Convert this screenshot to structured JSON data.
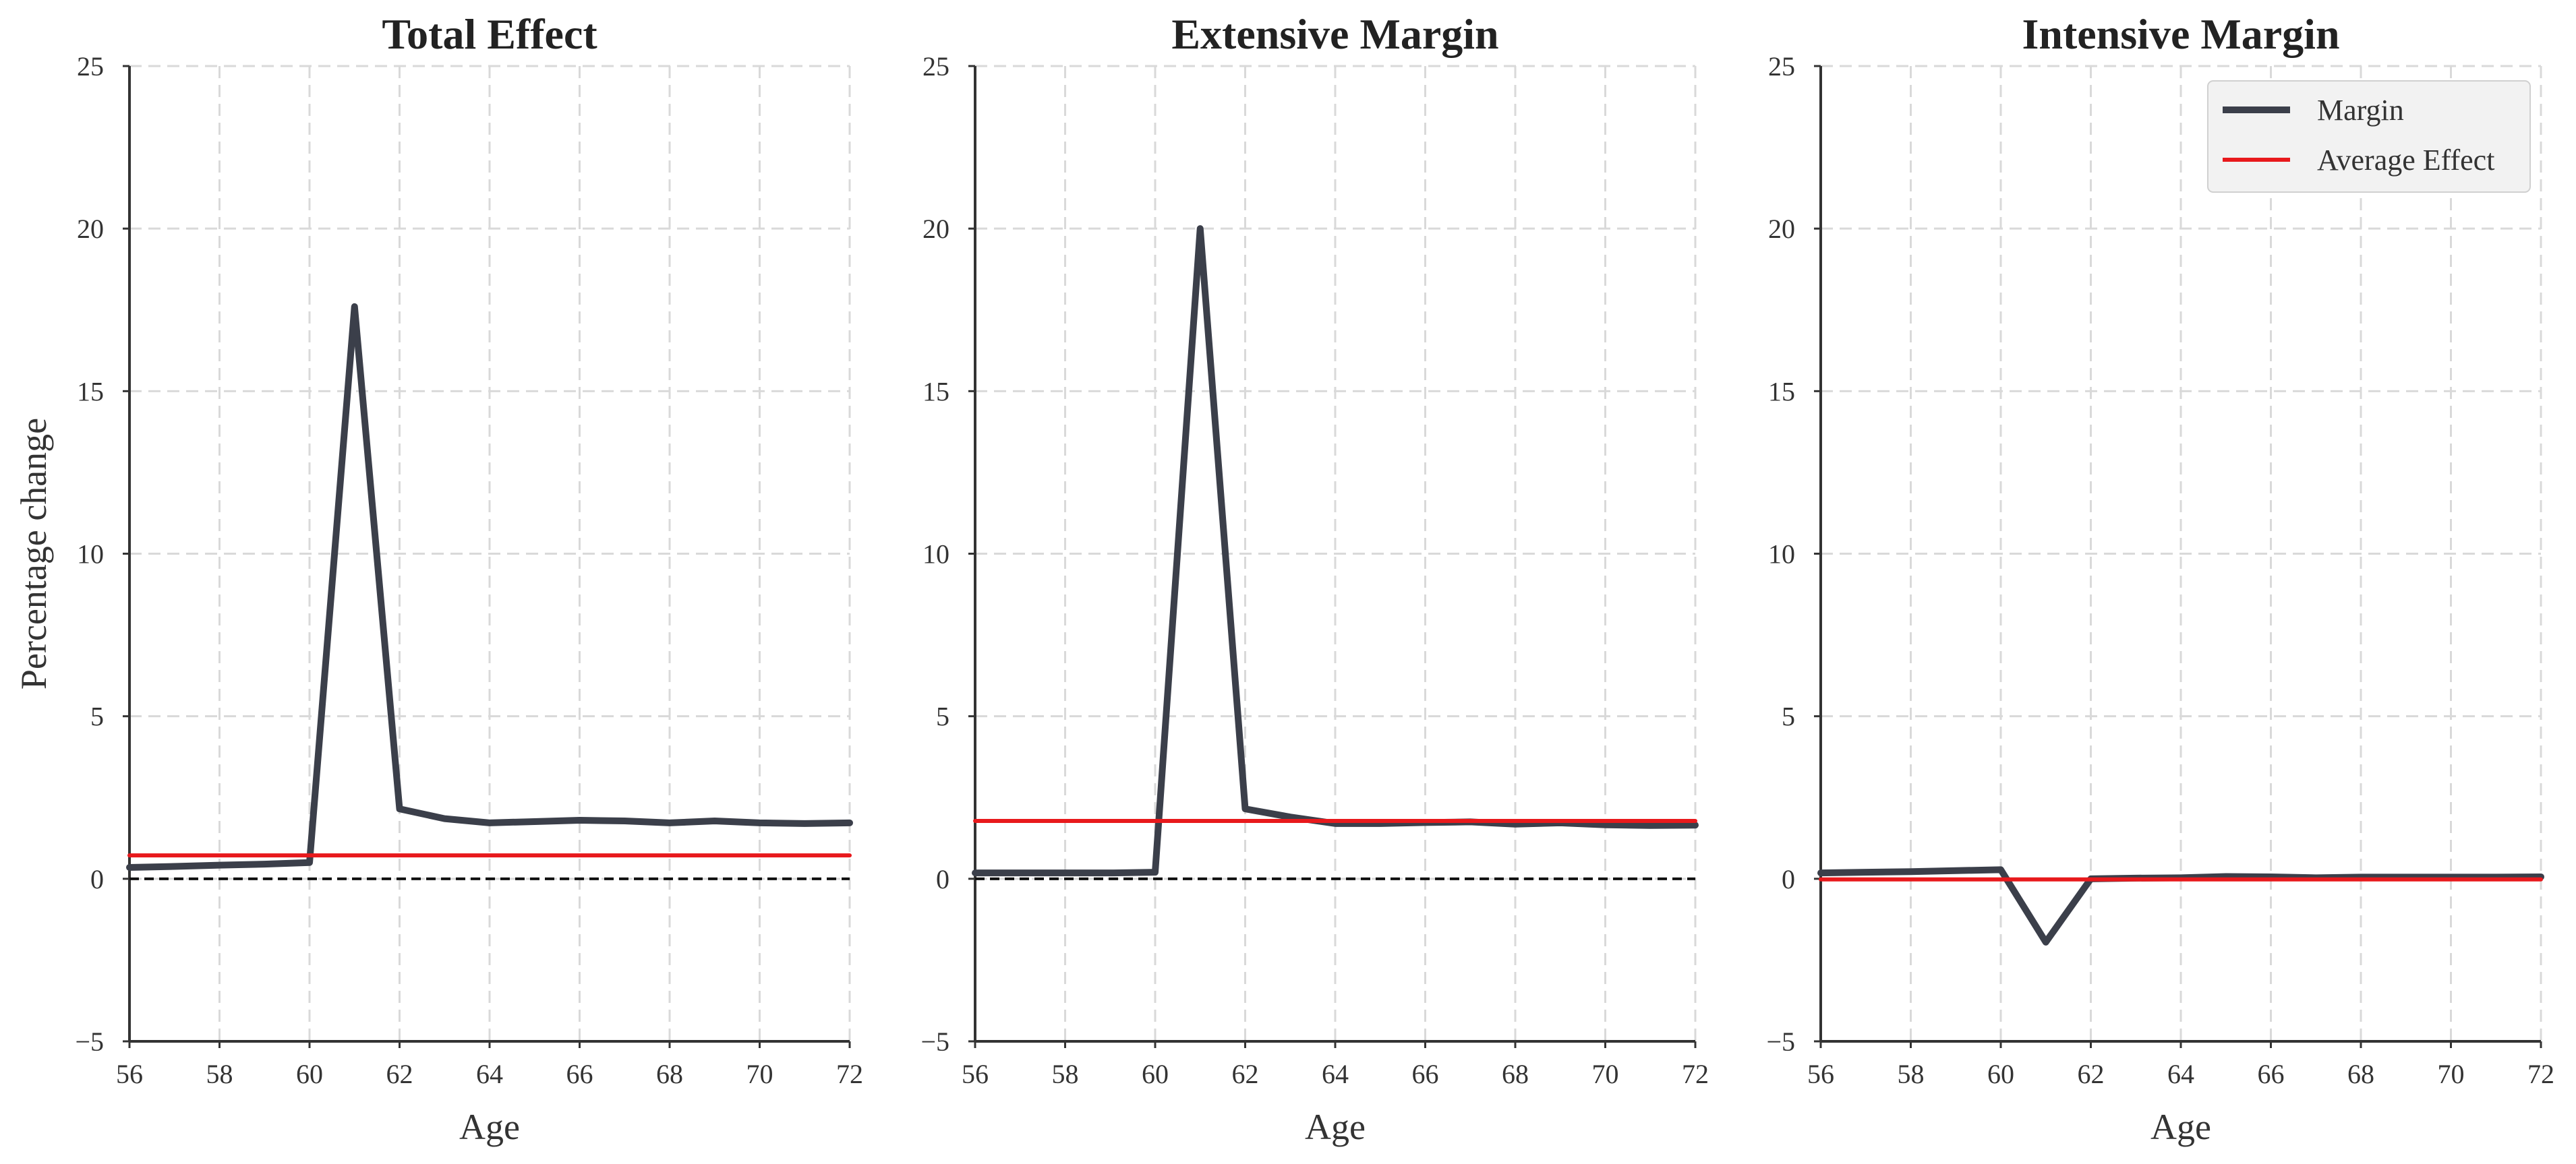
{
  "colors": {
    "margin_line": "#3b3f4a",
    "average_line": "#e8191c",
    "zero_line": "#111111",
    "grid": "#d9d9d9",
    "spine": "#333333",
    "legend_bg": "#f2f2f2"
  },
  "legend": {
    "placement": "upper-right of third panel",
    "items": [
      {
        "label": "Margin",
        "color": "#3b3f4a"
      },
      {
        "label": "Average Effect",
        "color": "#e8191c"
      }
    ]
  },
  "chart_data": [
    {
      "type": "line",
      "title": "Total Effect",
      "xlabel": "Age",
      "ylabel": "Percentage change",
      "xlim": [
        56,
        72
      ],
      "ylim": [
        -5,
        25
      ],
      "xticks": [
        "56",
        "58",
        "60",
        "62",
        "64",
        "66",
        "68",
        "70",
        "72"
      ],
      "yticks": [
        "−5",
        "0",
        "5",
        "10",
        "15",
        "20",
        "25"
      ],
      "grid": true,
      "zero_reference": 0,
      "series": [
        {
          "name": "Margin",
          "x": [
            56,
            57,
            58,
            59,
            60,
            61,
            62,
            63,
            64,
            65,
            66,
            67,
            68,
            69,
            70,
            71,
            72
          ],
          "y": [
            0.35,
            0.38,
            0.42,
            0.45,
            0.5,
            17.6,
            2.15,
            1.85,
            1.72,
            1.76,
            1.8,
            1.78,
            1.72,
            1.78,
            1.72,
            1.7,
            1.72
          ]
        },
        {
          "name": "Average Effect",
          "x": [
            56,
            72
          ],
          "y": [
            0.72,
            0.72
          ]
        }
      ]
    },
    {
      "type": "line",
      "title": "Extensive Margin",
      "xlabel": "Age",
      "ylabel": "",
      "xlim": [
        56,
        72
      ],
      "ylim": [
        -5,
        25
      ],
      "xticks": [
        "56",
        "58",
        "60",
        "62",
        "64",
        "66",
        "68",
        "70",
        "72"
      ],
      "yticks": [
        "−5",
        "0",
        "5",
        "10",
        "15",
        "20",
        "25"
      ],
      "grid": true,
      "zero_reference": 0,
      "series": [
        {
          "name": "Margin",
          "x": [
            56,
            57,
            58,
            59,
            60,
            61,
            62,
            63,
            64,
            65,
            66,
            67,
            68,
            69,
            70,
            71,
            72
          ],
          "y": [
            0.18,
            0.18,
            0.18,
            0.18,
            0.2,
            20.0,
            2.15,
            1.9,
            1.7,
            1.7,
            1.73,
            1.75,
            1.68,
            1.72,
            1.66,
            1.64,
            1.65
          ]
        },
        {
          "name": "Average Effect",
          "x": [
            56,
            72
          ],
          "y": [
            1.78,
            1.78
          ]
        }
      ]
    },
    {
      "type": "line",
      "title": "Intensive Margin",
      "xlabel": "Age",
      "ylabel": "",
      "xlim": [
        56,
        72
      ],
      "ylim": [
        -5,
        25
      ],
      "xticks": [
        "56",
        "58",
        "60",
        "62",
        "64",
        "66",
        "68",
        "70",
        "72"
      ],
      "yticks": [
        "−5",
        "0",
        "5",
        "10",
        "15",
        "20",
        "25"
      ],
      "grid": true,
      "zero_reference": null,
      "series": [
        {
          "name": "Margin",
          "x": [
            56,
            57,
            58,
            59,
            60,
            61,
            62,
            63,
            64,
            65,
            66,
            67,
            68,
            69,
            70,
            71,
            72
          ],
          "y": [
            0.18,
            0.2,
            0.22,
            0.25,
            0.28,
            -1.95,
            0.0,
            0.02,
            0.03,
            0.07,
            0.06,
            0.03,
            0.05,
            0.05,
            0.05,
            0.05,
            0.06
          ]
        },
        {
          "name": "Average Effect",
          "x": [
            56,
            72
          ],
          "y": [
            -0.02,
            -0.02
          ]
        }
      ]
    }
  ]
}
